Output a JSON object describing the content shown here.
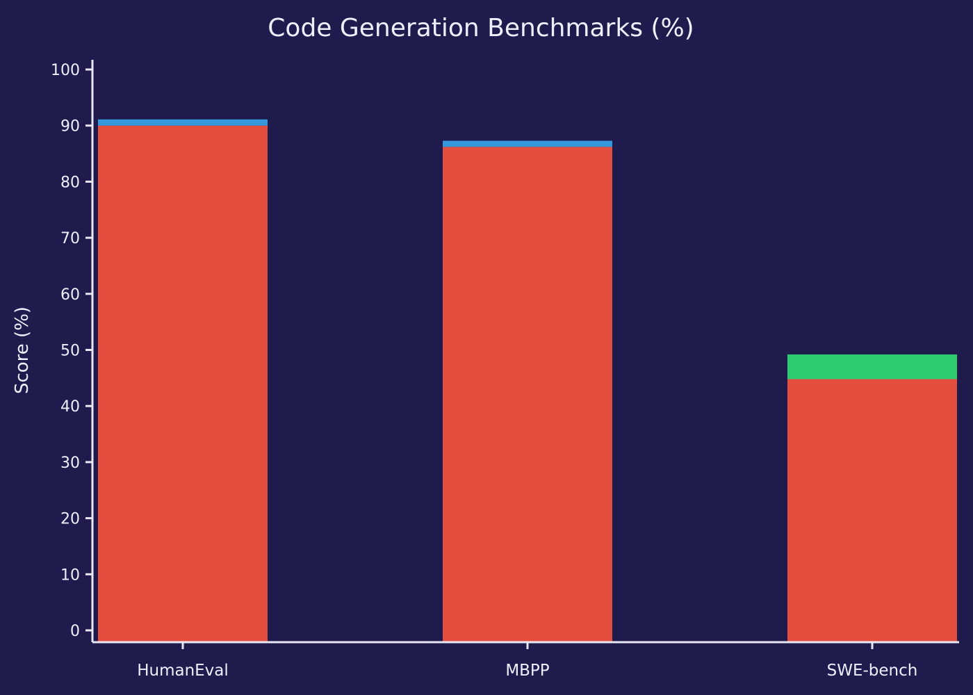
{
  "chart_data": {
    "type": "bar",
    "stacked": true,
    "title": "Code Generation Benchmarks (%)",
    "xlabel": "",
    "ylabel": "Score (%)",
    "ylim": [
      0,
      100
    ],
    "yticks": [
      0,
      10,
      20,
      30,
      40,
      50,
      60,
      70,
      80,
      90,
      100
    ],
    "categories": [
      "HumanEval",
      "MBPP",
      "SWE-bench"
    ],
    "grid": false,
    "legend": "none",
    "series": [
      {
        "values": [
          90.0,
          86.2,
          44.8
        ],
        "color": "#e34e3e"
      },
      {
        "values": [
          1.1,
          1.1,
          0
        ],
        "color": "#3498db"
      },
      {
        "values": [
          0,
          0,
          4.4
        ],
        "color": "#2ecc71"
      }
    ],
    "colors": {
      "background": "#1f1b4d",
      "axis": "#e8e8f4",
      "text": "#eef0ff"
    }
  }
}
